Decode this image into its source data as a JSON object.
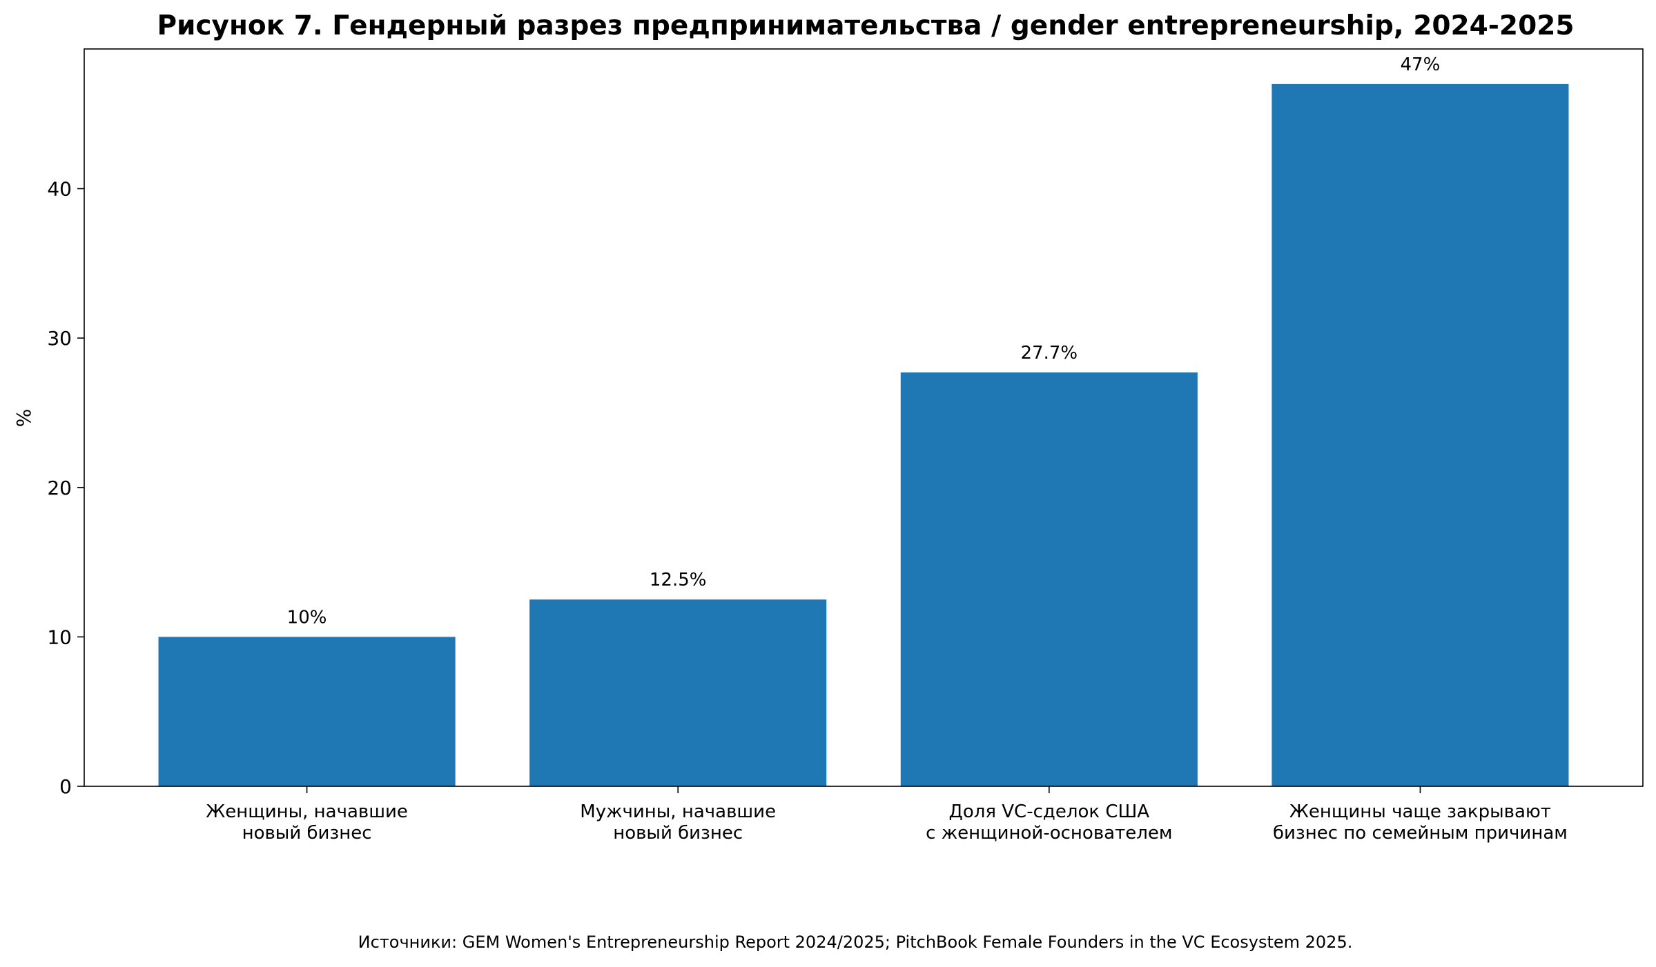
{
  "chart_data": {
    "type": "bar",
    "title": "Рисунок 7. Гендерный разрез предпринимательства / gender entrepreneurship, 2024-2025",
    "xlabel": "",
    "ylabel": "%",
    "ylim": [
      0,
      49.35
    ],
    "yticks": [
      0,
      10,
      20,
      30,
      40
    ],
    "grid": false,
    "categories": [
      [
        "Женщины, начавшие",
        "новый бизнес"
      ],
      [
        "Мужчины, начавшие",
        "новый бизнес"
      ],
      [
        "Доля VC-сделок США",
        "с женщиной-основателем"
      ],
      [
        "Женщины чаще закрывают",
        "бизнес по семейным причинам"
      ]
    ],
    "values": [
      10,
      12.5,
      27.7,
      47
    ],
    "data_labels": [
      "10%",
      "12.5%",
      "27.7%",
      "47%"
    ],
    "bar_color": "#1f77b4",
    "source_note": "Источники: GEM Women's Entrepreneurship Report 2024/2025; PitchBook Female Founders in the VC Ecosystem 2025."
  }
}
